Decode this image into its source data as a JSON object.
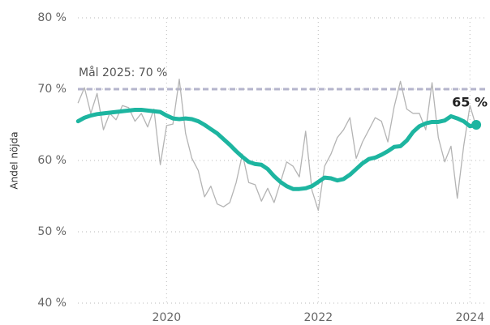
{
  "chart_data": {
    "type": "line",
    "ylabel": "Andel nöjda",
    "x": [
      2018.833,
      2018.917,
      2019.0,
      2019.083,
      2019.167,
      2019.25,
      2019.333,
      2019.417,
      2019.5,
      2019.583,
      2019.667,
      2019.75,
      2019.833,
      2019.917,
      2020.0,
      2020.083,
      2020.167,
      2020.25,
      2020.333,
      2020.417,
      2020.5,
      2020.583,
      2020.667,
      2020.75,
      2020.833,
      2020.917,
      2021.0,
      2021.083,
      2021.167,
      2021.25,
      2021.333,
      2021.417,
      2021.5,
      2021.583,
      2021.667,
      2021.75,
      2021.833,
      2021.917,
      2022.0,
      2022.083,
      2022.167,
      2022.25,
      2022.333,
      2022.417,
      2022.5,
      2022.583,
      2022.667,
      2022.75,
      2022.833,
      2022.917,
      2023.0,
      2023.083,
      2023.167,
      2023.25,
      2023.333,
      2023.417,
      2023.5,
      2023.583,
      2023.667,
      2023.75,
      2023.833,
      2023.917,
      2024.0,
      2024.083
    ],
    "series": [
      {
        "color": "#b4b4b4",
        "values": [
          68.1,
          70.2,
          66.6,
          69.4,
          64.3,
          66.6,
          65.7,
          67.7,
          67.4,
          65.5,
          66.6,
          64.7,
          67.2,
          59.4,
          64.9,
          65.1,
          71.4,
          63.8,
          60.3,
          58.6,
          54.9,
          56.4,
          53.9,
          53.5,
          54.1,
          56.9,
          60.9,
          56.9,
          56.6,
          54.3,
          56.1,
          54.1,
          56.9,
          59.8,
          59.2,
          57.7,
          64.1,
          55.8,
          53.0,
          59.2,
          60.9,
          63.2,
          64.3,
          66.0,
          60.3,
          62.6,
          64.3,
          66.0,
          65.5,
          62.6,
          67.5,
          71.1,
          67.2,
          66.6,
          66.6,
          64.3,
          70.9,
          63.2,
          59.8,
          62.0,
          54.7,
          62.0,
          67.7,
          64.7
        ]
      },
      {
        "color": "#1db5a0",
        "values": [
          65.5,
          66.0,
          66.3,
          66.5,
          66.6,
          66.7,
          66.8,
          66.9,
          67.0,
          67.1,
          67.1,
          67.0,
          66.9,
          66.8,
          66.3,
          65.9,
          65.8,
          65.9,
          65.8,
          65.5,
          65.0,
          64.4,
          63.8,
          63.0,
          62.2,
          61.3,
          60.5,
          59.8,
          59.5,
          59.4,
          58.8,
          57.8,
          57.0,
          56.4,
          56.0,
          56.0,
          56.1,
          56.4,
          57.0,
          57.6,
          57.5,
          57.2,
          57.4,
          58.0,
          58.8,
          59.6,
          60.2,
          60.4,
          60.8,
          61.3,
          61.9,
          62.0,
          62.8,
          64.0,
          64.8,
          65.2,
          65.4,
          65.4,
          65.6,
          66.2,
          65.9,
          65.5,
          64.8,
          65.0
        ]
      }
    ],
    "target": {
      "label": "Mål 2025: 70 %",
      "value": 70,
      "color": "#b4b4cc"
    },
    "end_label": {
      "text": "65 %",
      "value": 65
    },
    "xlim": [
      2018.83,
      2024.2
    ],
    "xticks": [
      2020,
      2022,
      2024
    ],
    "ylim": [
      40,
      80
    ],
    "yticks": [
      {
        "value": 40,
        "label": "40 %"
      },
      {
        "value": 50,
        "label": "50 %"
      },
      {
        "value": 60,
        "label": "60 %"
      },
      {
        "value": 70,
        "label": "70 %"
      },
      {
        "value": 80,
        "label": "80 %"
      }
    ],
    "grid": true
  }
}
